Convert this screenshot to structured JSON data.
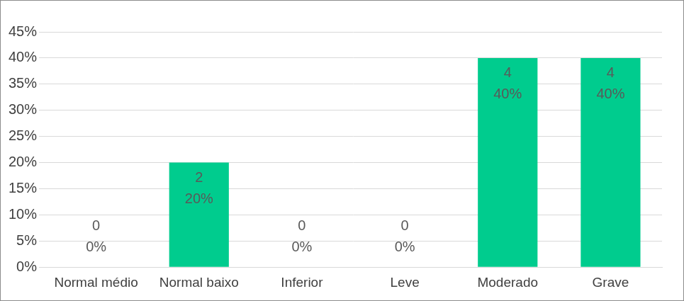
{
  "chart_data": {
    "type": "bar",
    "categories": [
      "Normal médio",
      "Normal baixo",
      "Inferior",
      "Leve",
      "Moderado",
      "Grave"
    ],
    "values": [
      0,
      20,
      0,
      0,
      40,
      40
    ],
    "value_labels": [
      "0%",
      "20%",
      "0%",
      "0%",
      "40%",
      "40%"
    ],
    "counts": [
      0,
      2,
      0,
      0,
      4,
      4
    ],
    "color": "#00cc8e",
    "ylim": [
      0,
      45
    ],
    "yticks": [
      {
        "value": 0,
        "label": "0%"
      },
      {
        "value": 5,
        "label": "5%"
      },
      {
        "value": 10,
        "label": "10%"
      },
      {
        "value": 15,
        "label": "15%"
      },
      {
        "value": 20,
        "label": "20%"
      },
      {
        "value": 25,
        "label": "25%"
      },
      {
        "value": 30,
        "label": "30%"
      },
      {
        "value": 35,
        "label": "35%"
      },
      {
        "value": 40,
        "label": "40%"
      },
      {
        "value": 45,
        "label": "45%"
      }
    ],
    "grid": true,
    "data_labels": true
  }
}
